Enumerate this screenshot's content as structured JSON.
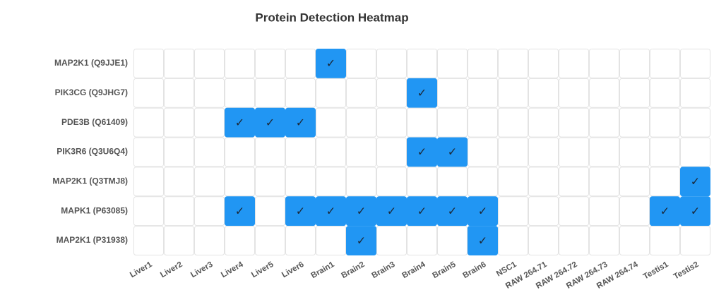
{
  "chart_data": {
    "type": "heatmap",
    "title": "Protein Detection Heatmap",
    "x_categories": [
      "Liver1",
      "Liver2",
      "Liver3",
      "Liver4",
      "Liver5",
      "Liver6",
      "Brain1",
      "Brain2",
      "Brain3",
      "Brain4",
      "Brain5",
      "Brain6",
      "NSC1",
      "RAW 264.71",
      "RAW 264.72",
      "RAW 264.73",
      "RAW 264.74",
      "Testis1",
      "Testis2"
    ],
    "y_categories": [
      "MAP2K1 (Q9JJE1)",
      "PIK3CG (Q9JHG7)",
      "PDE3B (Q61409)",
      "PIK3R6 (Q3U6Q4)",
      "MAP2K1 (Q3TMJ8)",
      "MAPK1 (P63085)",
      "MAP2K1 (P31938)"
    ],
    "values": [
      [
        0,
        0,
        0,
        0,
        0,
        0,
        1,
        0,
        0,
        0,
        0,
        0,
        0,
        0,
        0,
        0,
        0,
        0,
        0
      ],
      [
        0,
        0,
        0,
        0,
        0,
        0,
        0,
        0,
        0,
        1,
        0,
        0,
        0,
        0,
        0,
        0,
        0,
        0,
        0
      ],
      [
        0,
        0,
        0,
        1,
        1,
        1,
        0,
        0,
        0,
        0,
        0,
        0,
        0,
        0,
        0,
        0,
        0,
        0,
        0
      ],
      [
        0,
        0,
        0,
        0,
        0,
        0,
        0,
        0,
        0,
        1,
        1,
        0,
        0,
        0,
        0,
        0,
        0,
        0,
        0
      ],
      [
        0,
        0,
        0,
        0,
        0,
        0,
        0,
        0,
        0,
        0,
        0,
        0,
        0,
        0,
        0,
        0,
        0,
        0,
        1
      ],
      [
        0,
        0,
        0,
        1,
        0,
        1,
        1,
        1,
        1,
        1,
        1,
        1,
        0,
        0,
        0,
        0,
        0,
        1,
        1
      ],
      [
        0,
        0,
        0,
        0,
        0,
        0,
        0,
        1,
        0,
        0,
        0,
        1,
        0,
        0,
        0,
        0,
        0,
        0,
        0
      ]
    ],
    "marker": "✓",
    "colors": [
      "#ffffff",
      "#2196f3"
    ]
  }
}
